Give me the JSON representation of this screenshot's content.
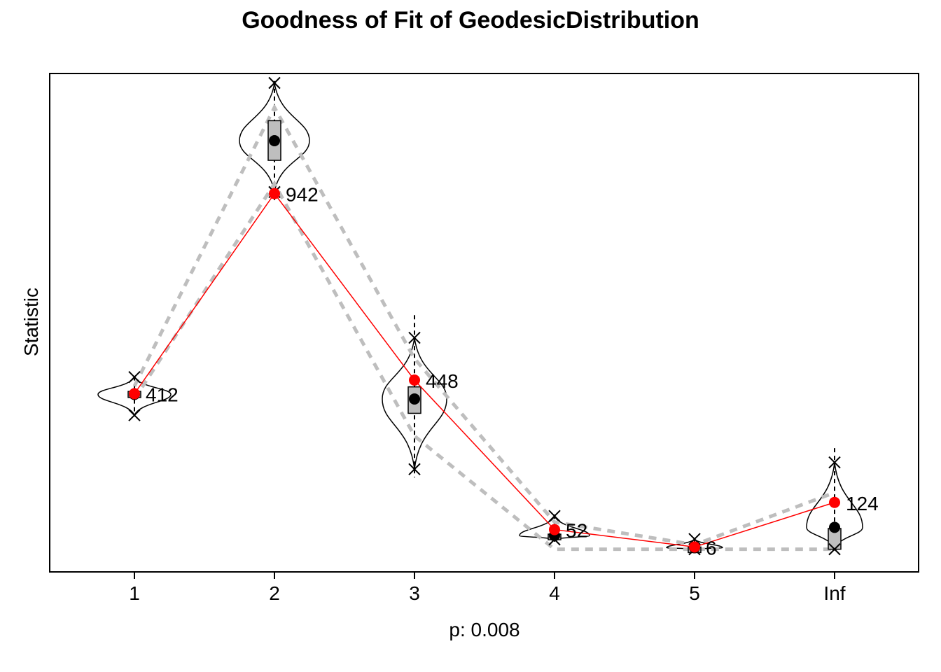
{
  "chart_data": {
    "type": "line",
    "title": "Goodness of Fit of GeodesicDistribution",
    "xlabel": "p: 0.008",
    "ylabel": "Statistic",
    "categories": [
      "1",
      "2",
      "3",
      "4",
      "5",
      "Inf"
    ],
    "yaxis": "no tick labels",
    "observed": {
      "values": [
        412,
        942,
        448,
        52,
        6,
        124
      ],
      "labels": [
        "412",
        "942",
        "448",
        "52",
        "6",
        "124"
      ],
      "color": "#ff0000"
    },
    "simulated": {
      "median": [
        410,
        1082,
        398,
        36,
        4,
        58
      ],
      "q1": [
        402,
        1030,
        360,
        30,
        2,
        0
      ],
      "q3": [
        418,
        1135,
        430,
        40,
        6,
        55
      ],
      "upper_band": [
        432,
        1170,
        505,
        72,
        12,
        150
      ],
      "lower_band": [
        398,
        968,
        300,
        0,
        0,
        0
      ],
      "max": [
        456,
        1235,
        560,
        88,
        27,
        230
      ],
      "min": [
        355,
        946,
        212,
        26,
        0,
        0
      ],
      "whisker_top": [
        458,
        1240,
        620,
        92,
        28,
        268
      ],
      "whisker_bottom": [
        352,
        925,
        190,
        20,
        0,
        0
      ],
      "band_color": "#bebebe",
      "box_color": "#bebebe"
    },
    "ylim": [
      -60,
      1260
    ],
    "grid": false,
    "legend": "none"
  }
}
